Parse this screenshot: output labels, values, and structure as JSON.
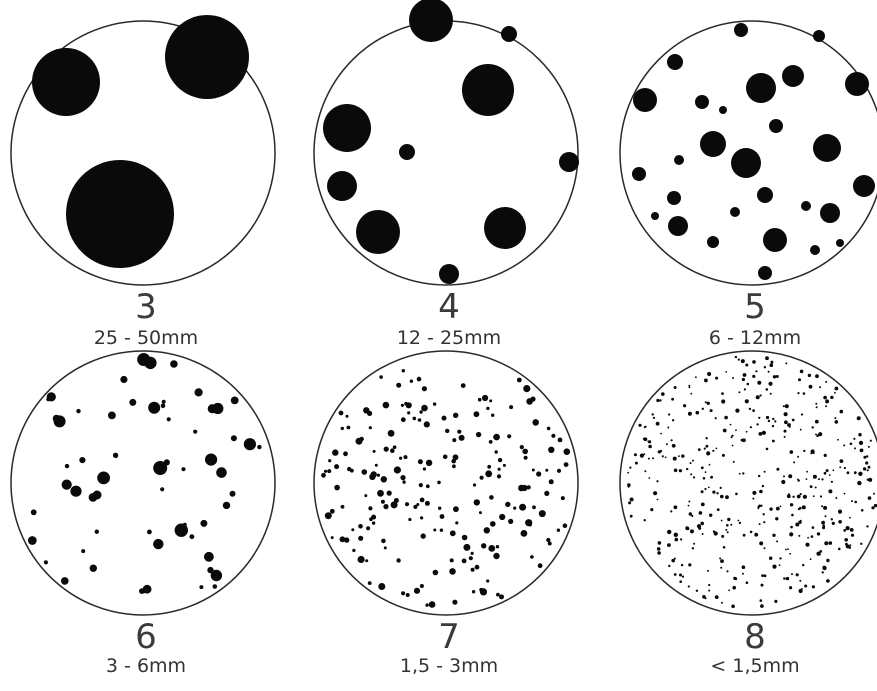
{
  "panels": [
    {
      "number": "3",
      "range": "25 - 50mm"
    },
    {
      "number": "4",
      "range": "12 - 25mm"
    },
    {
      "number": "5",
      "range": "6 - 12mm"
    },
    {
      "number": "6",
      "range": "3 - 6mm"
    },
    {
      "number": "7",
      "range": "1,5 - 3mm"
    },
    {
      "number": "8",
      "range": "< 1,5mm"
    }
  ],
  "colors": {
    "spot": "#0a0a0a",
    "circle_border": "#2a2a2a",
    "label": "#3b3b3b"
  }
}
